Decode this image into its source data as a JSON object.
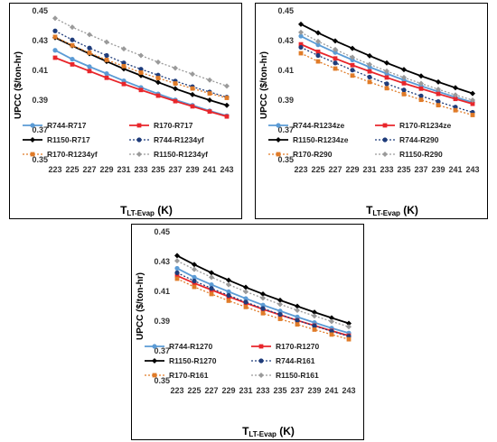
{
  "chart_data": [
    {
      "type": "line",
      "ylabel": "UPCC ($/ton-hr)",
      "xlabel_main": "T",
      "xlabel_sub": "LT-Evap",
      "xlabel_unit": " (K)",
      "x": [
        223,
        225,
        227,
        229,
        231,
        233,
        235,
        237,
        239,
        241,
        243
      ],
      "ylim": [
        0.35,
        0.45
      ],
      "yticks": [
        "0.35",
        "0.37",
        "0.39",
        "0.41",
        "0.43",
        "0.45"
      ],
      "legend_position": "bottom",
      "series": [
        {
          "name": "R744-R717",
          "color": "#5b9bd5",
          "marker": "circle",
          "dashed": false,
          "values": [
            0.4235,
            0.4175,
            0.4125,
            0.4078,
            0.403,
            0.3985,
            0.3942,
            0.3902,
            0.3865,
            0.3828,
            0.3795
          ]
        },
        {
          "name": "R170-R717",
          "color": "#e8262b",
          "marker": "square",
          "dashed": false,
          "values": [
            0.4185,
            0.414,
            0.4095,
            0.405,
            0.4008,
            0.3968,
            0.393,
            0.3893,
            0.3858,
            0.3823,
            0.379
          ]
        },
        {
          "name": "R1150-R717",
          "color": "#000000",
          "marker": "diamond",
          "dashed": false,
          "values": [
            0.432,
            0.4265,
            0.4212,
            0.416,
            0.411,
            0.4065,
            0.402,
            0.3977,
            0.3937,
            0.39,
            0.3865
          ]
        },
        {
          "name": "R744-R1234yf",
          "color": "#1f3c7a",
          "marker": "circle",
          "dashed": true,
          "values": [
            0.4365,
            0.4305,
            0.425,
            0.42,
            0.415,
            0.4108,
            0.4068,
            0.4028,
            0.399,
            0.3955,
            0.392
          ]
        },
        {
          "name": "R170-R1234yf",
          "color": "#e07b28",
          "marker": "square",
          "dashed": true,
          "values": [
            0.4325,
            0.4268,
            0.4218,
            0.417,
            0.4128,
            0.4085,
            0.4048,
            0.4012,
            0.3978,
            0.3945,
            0.3915
          ]
        },
        {
          "name": "R1150-R1234yf",
          "color": "#9a9a9a",
          "marker": "diamond",
          "dashed": true,
          "values": [
            0.445,
            0.439,
            0.434,
            0.429,
            0.4245,
            0.42,
            0.4155,
            0.4115,
            0.4075,
            0.4035,
            0.3995
          ]
        }
      ]
    },
    {
      "type": "line",
      "ylabel": "UPCC ($/ton-hr)",
      "xlabel_main": "T",
      "xlabel_sub": "LT-Evap",
      "xlabel_unit": " (K)",
      "x": [
        223,
        225,
        227,
        229,
        231,
        233,
        235,
        237,
        239,
        241,
        243
      ],
      "ylim": [
        0.35,
        0.45
      ],
      "yticks": [
        "0.35",
        "0.37",
        "0.39",
        "0.41",
        "0.43",
        "0.45"
      ],
      "legend_position": "bottom",
      "series": [
        {
          "name": "R744-R1234ze",
          "color": "#5b9bd5",
          "marker": "circle",
          "dashed": false,
          "values": [
            0.433,
            0.4272,
            0.422,
            0.417,
            0.4122,
            0.4078,
            0.4035,
            0.3995,
            0.3957,
            0.392,
            0.3885
          ]
        },
        {
          "name": "R170-R1234ze",
          "color": "#e8262b",
          "marker": "square",
          "dashed": false,
          "values": [
            0.4275,
            0.4225,
            0.418,
            0.4135,
            0.4093,
            0.4052,
            0.4013,
            0.3977,
            0.3942,
            0.3908,
            0.3875
          ]
        },
        {
          "name": "R1150-R1234ze",
          "color": "#000000",
          "marker": "diamond",
          "dashed": false,
          "values": [
            0.441,
            0.4352,
            0.4298,
            0.4248,
            0.4198,
            0.415,
            0.4105,
            0.4062,
            0.4022,
            0.3983,
            0.3945
          ]
        },
        {
          "name": "R744-R290",
          "color": "#1f3c7a",
          "marker": "circle",
          "dashed": true,
          "values": [
            0.4255,
            0.42,
            0.415,
            0.4102,
            0.4055,
            0.401,
            0.3968,
            0.3928,
            0.389,
            0.3853,
            0.3818
          ]
        },
        {
          "name": "R170-R290",
          "color": "#e07b28",
          "marker": "square",
          "dashed": true,
          "values": [
            0.4215,
            0.416,
            0.4112,
            0.4065,
            0.4022,
            0.398,
            0.394,
            0.3902,
            0.3866,
            0.3832,
            0.38
          ]
        },
        {
          "name": "R1150-R290",
          "color": "#9a9a9a",
          "marker": "diamond",
          "dashed": true,
          "values": [
            0.4355,
            0.4295,
            0.424,
            0.4188,
            0.414,
            0.4095,
            0.4052,
            0.4012,
            0.3973,
            0.3935,
            0.39
          ]
        }
      ]
    },
    {
      "type": "line",
      "ylabel": "UPCC ($/ton-hr)",
      "xlabel_main": "T",
      "xlabel_sub": "LT-Evap",
      "xlabel_unit": " (K)",
      "x": [
        223,
        225,
        227,
        229,
        231,
        233,
        235,
        237,
        239,
        241,
        243
      ],
      "ylim": [
        0.35,
        0.45
      ],
      "yticks": [
        "0.35",
        "0.37",
        "0.39",
        "0.41",
        "0.43",
        "0.45"
      ],
      "legend_position": "bottom",
      "series": [
        {
          "name": "R744-R1270",
          "color": "#5b9bd5",
          "marker": "circle",
          "dashed": false,
          "values": [
            0.4255,
            0.4195,
            0.4145,
            0.4098,
            0.4052,
            0.4008,
            0.3968,
            0.3928,
            0.389,
            0.3853,
            0.382
          ]
        },
        {
          "name": "R170-R1270",
          "color": "#e8262b",
          "marker": "square",
          "dashed": false,
          "values": [
            0.4205,
            0.4155,
            0.411,
            0.4065,
            0.4022,
            0.398,
            0.3942,
            0.3905,
            0.387,
            0.3835,
            0.3802
          ]
        },
        {
          "name": "R1150-R1270",
          "color": "#000000",
          "marker": "diamond",
          "dashed": false,
          "values": [
            0.434,
            0.428,
            0.4225,
            0.4175,
            0.4127,
            0.4082,
            0.404,
            0.4,
            0.396,
            0.3922,
            0.3885
          ]
        },
        {
          "name": "R744-R161",
          "color": "#1f3c7a",
          "marker": "circle",
          "dashed": true,
          "values": [
            0.4225,
            0.417,
            0.412,
            0.4073,
            0.4028,
            0.3985,
            0.3945,
            0.3905,
            0.3868,
            0.3832,
            0.3798
          ]
        },
        {
          "name": "R170-R161",
          "color": "#e07b28",
          "marker": "square",
          "dashed": true,
          "values": [
            0.4185,
            0.413,
            0.4082,
            0.4037,
            0.3995,
            0.3953,
            0.3915,
            0.3878,
            0.3843,
            0.381,
            0.3778
          ]
        },
        {
          "name": "R1150-R161",
          "color": "#9a9a9a",
          "marker": "diamond",
          "dashed": true,
          "values": [
            0.4305,
            0.4248,
            0.4195,
            0.4145,
            0.4098,
            0.4055,
            0.4013,
            0.3973,
            0.3935,
            0.3898,
            0.3862
          ]
        }
      ]
    }
  ]
}
